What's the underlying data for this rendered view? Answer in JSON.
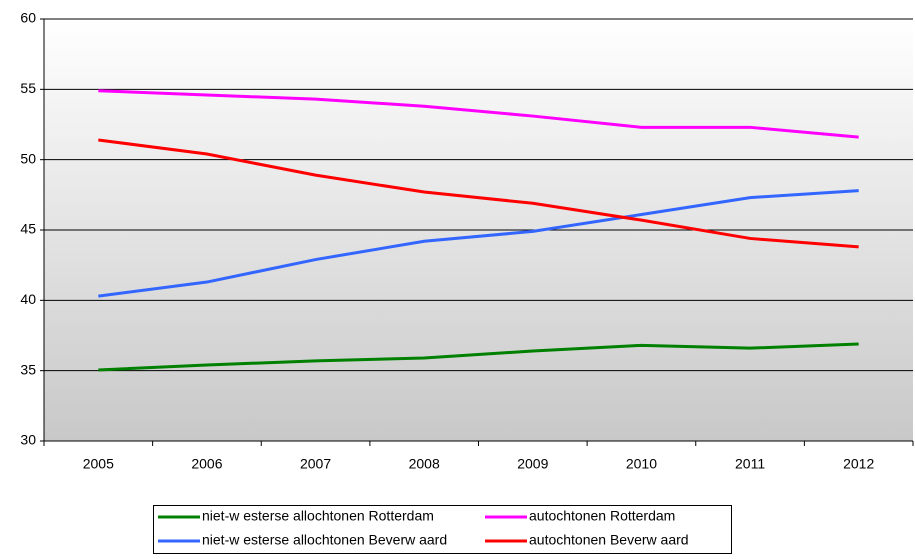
{
  "chart_data": {
    "type": "line",
    "categories": [
      "2005",
      "2006",
      "2007",
      "2008",
      "2009",
      "2010",
      "2011",
      "2012"
    ],
    "series": [
      {
        "name": "niet-w esterse allochtonen Rotterdam",
        "color": "#008000",
        "values": [
          35.05,
          35.4,
          35.7,
          35.9,
          36.4,
          36.8,
          36.6,
          36.9
        ]
      },
      {
        "name": "autochtonen Rotterdam",
        "color": "#ff00ff",
        "values": [
          54.9,
          54.6,
          54.3,
          53.8,
          53.1,
          52.3,
          52.3,
          51.6
        ]
      },
      {
        "name": "niet-w esterse allochtonen Beverw aard",
        "color": "#3366ff",
        "values": [
          40.3,
          41.3,
          42.9,
          44.2,
          44.9,
          46.1,
          47.3,
          47.8
        ]
      },
      {
        "name": "autochtonen Beverw aard",
        "color": "#ff0000",
        "values": [
          51.4,
          50.4,
          48.9,
          47.7,
          46.9,
          45.7,
          44.4,
          43.8
        ]
      }
    ],
    "ylim": [
      30,
      60
    ],
    "yticks": [
      30,
      35,
      40,
      45,
      50,
      55,
      60
    ],
    "grid": true,
    "legend": "bottom"
  }
}
